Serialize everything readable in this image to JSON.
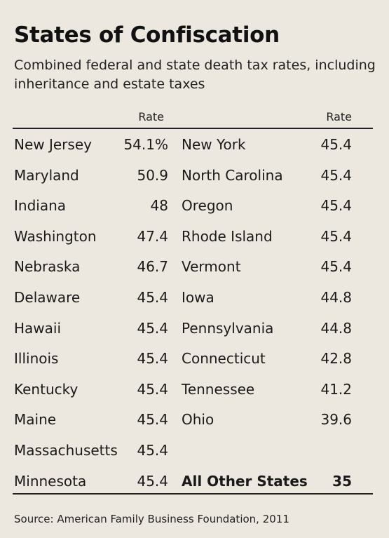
{
  "title": "States of Confiscation",
  "subtitle": "Combined federal and state death tax rates, including inheritance and estate taxes",
  "source": "Source: American Family Business Foundation, 2011",
  "chart_data": {
    "type": "table",
    "columns": [
      "",
      "Rate",
      "",
      "Rate"
    ],
    "left": [
      {
        "state": "New Jersey",
        "rate": "54.1%"
      },
      {
        "state": "Maryland",
        "rate": "50.9"
      },
      {
        "state": "Indiana",
        "rate": "48"
      },
      {
        "state": "Washington",
        "rate": "47.4"
      },
      {
        "state": "Nebraska",
        "rate": "46.7"
      },
      {
        "state": "Delaware",
        "rate": "45.4"
      },
      {
        "state": "Hawaii",
        "rate": "45.4"
      },
      {
        "state": "Illinois",
        "rate": "45.4"
      },
      {
        "state": "Kentucky",
        "rate": "45.4"
      },
      {
        "state": "Maine",
        "rate": "45.4"
      },
      {
        "state": "Massachusetts",
        "rate": "45.4"
      },
      {
        "state": "Minnesota",
        "rate": "45.4"
      }
    ],
    "right": [
      {
        "state": "New York",
        "rate": "45.4"
      },
      {
        "state": "North Carolina",
        "rate": "45.4"
      },
      {
        "state": "Oregon",
        "rate": "45.4"
      },
      {
        "state": "Rhode Island",
        "rate": "45.4"
      },
      {
        "state": "Vermont",
        "rate": "45.4"
      },
      {
        "state": "Iowa",
        "rate": "44.8"
      },
      {
        "state": "Pennsylvania",
        "rate": "44.8"
      },
      {
        "state": "Connecticut",
        "rate": "42.8"
      },
      {
        "state": "Tennessee",
        "rate": "41.2"
      },
      {
        "state": "Ohio",
        "rate": "39.6"
      },
      {
        "state": "",
        "rate": ""
      },
      {
        "state": "All Other States",
        "rate": "35",
        "bold": true
      }
    ]
  }
}
